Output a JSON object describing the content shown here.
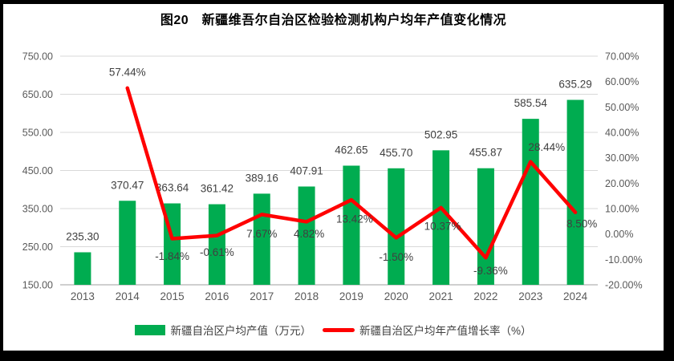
{
  "colors": {
    "bar": "#00AC50",
    "line": "#FF0000",
    "grid": "#D9D9D9",
    "axis_line": "#BFBFBF",
    "axis_text": "#595959",
    "label_text": "#404040",
    "title_text": "#000000",
    "frame_border": "#000000",
    "background": "#FFFFFF"
  },
  "chart_data": {
    "type": "bar",
    "title": "图20　新疆维吾尔自治区检验检测机构户均年产值变化情况",
    "categories": [
      "2013",
      "2014",
      "2015",
      "2016",
      "2017",
      "2018",
      "2019",
      "2020",
      "2021",
      "2022",
      "2023",
      "2024"
    ],
    "series": [
      {
        "name": "新疆自治区户均产值（万元）",
        "type": "bar",
        "axis": "left",
        "color": "#00AC50",
        "values": [
          235.3,
          370.47,
          363.64,
          361.42,
          389.16,
          407.91,
          462.65,
          455.7,
          502.95,
          455.87,
          585.54,
          635.29
        ]
      },
      {
        "name": "新疆自治区户均年产值增长率（%）",
        "type": "line",
        "axis": "right",
        "color": "#FF0000",
        "values": [
          null,
          57.44,
          -1.84,
          -0.61,
          7.67,
          4.82,
          13.42,
          -1.5,
          10.37,
          -9.36,
          28.44,
          8.5
        ]
      }
    ],
    "left_axis": {
      "min": 150,
      "max": 750,
      "step": 100,
      "ticks": [
        "750.00",
        "650.00",
        "550.00",
        "450.00",
        "350.00",
        "250.00",
        "150.00"
      ]
    },
    "right_axis": {
      "min": -20,
      "max": 70,
      "step": 10,
      "ticks": [
        "70.00%",
        "60.00%",
        "50.00%",
        "40.00%",
        "30.00%",
        "20.00%",
        "10.00%",
        "0.00%",
        "-10.00%",
        "-20.00%"
      ]
    },
    "grid": true,
    "legend_position": "bottom",
    "data_labels": true,
    "line_label_offsets": [
      null,
      [
        0,
        -20
      ],
      [
        0,
        22
      ],
      [
        0,
        21
      ],
      [
        0,
        24
      ],
      [
        3,
        15
      ],
      [
        4,
        24
      ],
      [
        0,
        24
      ],
      [
        2,
        23
      ],
      [
        6,
        16
      ],
      [
        20,
        -18
      ],
      [
        8,
        14
      ]
    ]
  }
}
